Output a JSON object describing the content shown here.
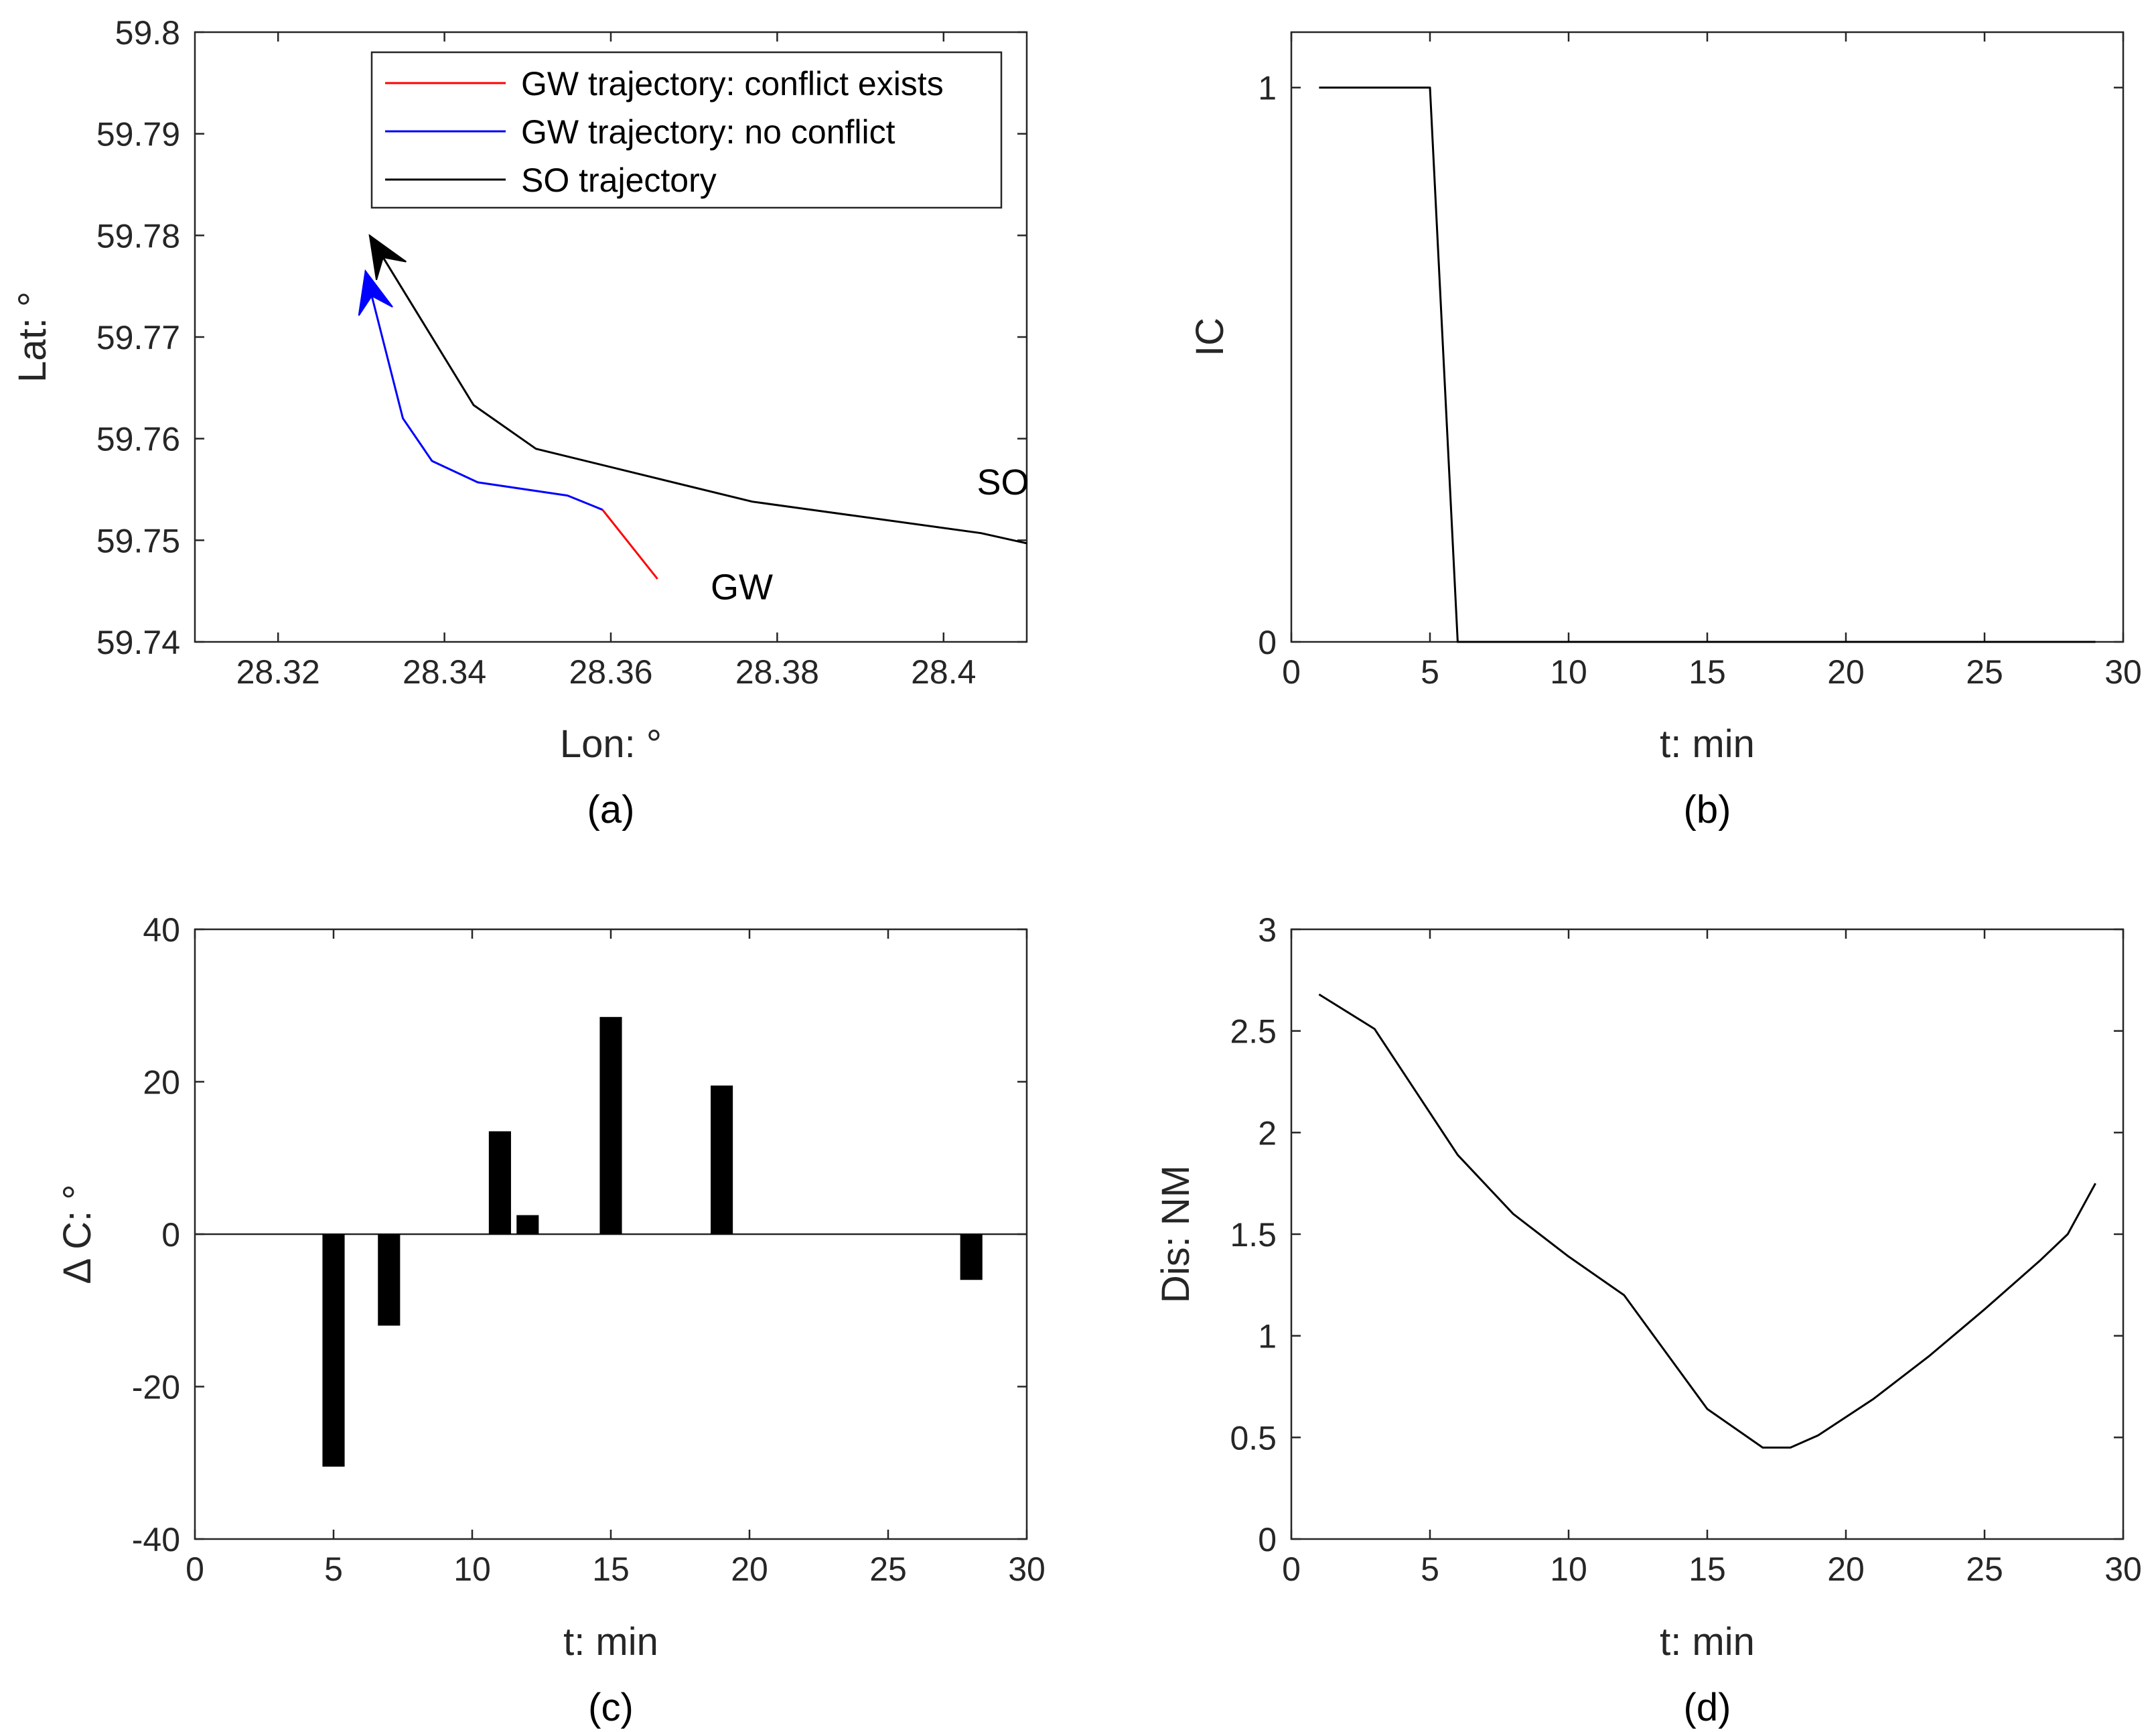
{
  "chart_data": [
    {
      "id": "a",
      "type": "line",
      "caption": "(a)",
      "xlabel": "Lon: °",
      "ylabel": "Lat: °",
      "xlim": [
        28.31,
        28.41
      ],
      "ylim": [
        59.74,
        59.8
      ],
      "xticks": [
        28.32,
        28.34,
        28.36,
        28.38,
        28.4
      ],
      "xtick_labels": [
        "28.32",
        "28.34",
        "28.36",
        "28.38",
        "28.4"
      ],
      "yticks": [
        59.74,
        59.75,
        59.76,
        59.77,
        59.78,
        59.79,
        59.8
      ],
      "ytick_labels": [
        "59.74",
        "59.75",
        "59.76",
        "59.77",
        "59.78",
        "59.79",
        "59.8"
      ],
      "legend_position": "top-right",
      "series": [
        {
          "name": "GW trajectory: conflict exists",
          "color": "#ff0000",
          "x": [
            28.3656,
            28.359
          ],
          "y": [
            59.7462,
            59.753
          ]
        },
        {
          "name": "GW trajectory: no conflict",
          "color": "#0000ff",
          "x": [
            28.359,
            28.3548,
            28.344,
            28.3385,
            28.335,
            28.3305
          ],
          "y": [
            59.753,
            59.7544,
            59.7557,
            59.7578,
            59.762,
            59.7765
          ],
          "arrow": true
        },
        {
          "name": "SO trajectory",
          "color": "#000000",
          "x": [
            28.41,
            28.4045,
            28.377,
            28.351,
            28.3435,
            28.331
          ],
          "y": [
            59.7497,
            59.7507,
            59.7538,
            59.759,
            59.7633,
            59.78
          ],
          "arrow": true
        }
      ],
      "annotations": [
        {
          "text": "SO",
          "x": 28.404,
          "y": 59.7545
        },
        {
          "text": "GW",
          "x": 28.372,
          "y": 59.7442
        }
      ]
    },
    {
      "id": "b",
      "type": "line",
      "caption": "(b)",
      "xlabel": "t: min",
      "ylabel": "IC",
      "xlim": [
        0,
        30
      ],
      "ylim": [
        0,
        1.1
      ],
      "xticks": [
        0,
        5,
        10,
        15,
        20,
        25,
        30
      ],
      "xtick_labels": [
        "0",
        "5",
        "10",
        "15",
        "20",
        "25",
        "30"
      ],
      "yticks": [
        0,
        1
      ],
      "ytick_labels": [
        "0",
        "1"
      ],
      "series": [
        {
          "name": "IC",
          "color": "#000000",
          "x": [
            1,
            5,
            6,
            29
          ],
          "y": [
            1,
            1,
            0,
            0
          ]
        }
      ]
    },
    {
      "id": "c",
      "type": "bar",
      "caption": "(c)",
      "xlabel": "t: min",
      "ylabel": "Δ C: °",
      "xlim": [
        0,
        30
      ],
      "ylim": [
        -40,
        40
      ],
      "xticks": [
        0,
        5,
        10,
        15,
        20,
        25,
        30
      ],
      "xtick_labels": [
        "0",
        "5",
        "10",
        "15",
        "20",
        "25",
        "30"
      ],
      "yticks": [
        -40,
        -20,
        0,
        20,
        40
      ],
      "ytick_labels": [
        "-40",
        "-20",
        "0",
        "20",
        "40"
      ],
      "x": [
        5,
        7,
        11,
        12,
        15,
        19,
        28
      ],
      "values": [
        -30.5,
        -12,
        13.5,
        2.5,
        28.5,
        19.5,
        -6
      ]
    },
    {
      "id": "d",
      "type": "line",
      "caption": "(d)",
      "xlabel": "t: min",
      "ylabel": "Dis: NM",
      "xlim": [
        0,
        30
      ],
      "ylim": [
        0,
        3
      ],
      "xticks": [
        0,
        5,
        10,
        15,
        20,
        25,
        30
      ],
      "xtick_labels": [
        "0",
        "5",
        "10",
        "15",
        "20",
        "25",
        "30"
      ],
      "yticks": [
        0,
        0.5,
        1,
        1.5,
        2,
        2.5,
        3
      ],
      "ytick_labels": [
        "0",
        "0.5",
        "1",
        "1.5",
        "2",
        "2.5",
        "3"
      ],
      "series": [
        {
          "name": "Dis",
          "color": "#000000",
          "x": [
            1,
            3,
            6,
            8,
            10,
            12,
            15,
            17,
            18,
            19,
            21,
            23,
            25,
            27,
            28,
            29
          ],
          "y": [
            2.68,
            2.51,
            1.89,
            1.6,
            1.39,
            1.2,
            0.64,
            0.45,
            0.45,
            0.51,
            0.69,
            0.9,
            1.13,
            1.37,
            1.5,
            1.75
          ]
        }
      ]
    }
  ]
}
